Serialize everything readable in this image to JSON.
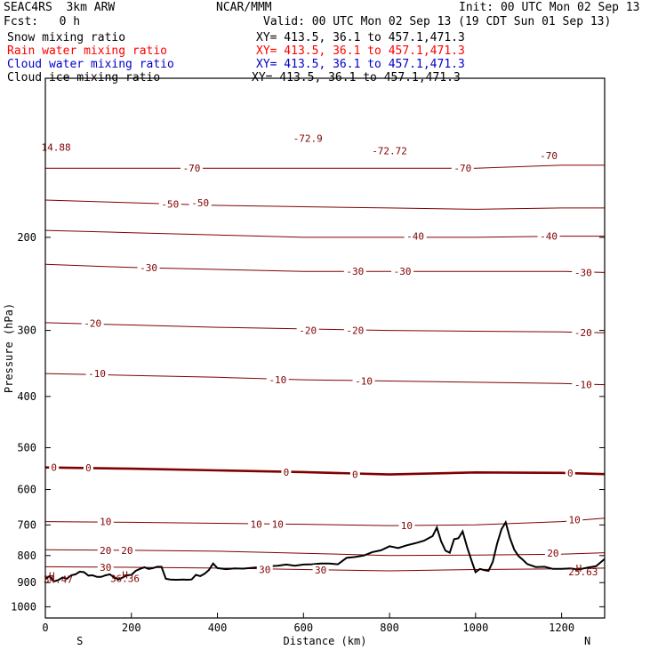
{
  "header": {
    "model": "SEAC4RS  3km ARW",
    "fcst": "Fcst:   0 h",
    "org": "NCAR/MMM",
    "init": "Init: 00 UTC Mon 02 Sep 13",
    "valid": "Valid: 00 UTC Mon 02 Sep 13 (19 CDT Sun 01 Sep 13)",
    "fields": [
      {
        "name": "Snow mixing ratio",
        "xy": "XY= 413.5, 36.1 to 457.1,471.3",
        "color": "#000000"
      },
      {
        "name": "Rain water mixing ratio",
        "xy": "XY= 413.5, 36.1 to 457.1,471.3",
        "color": "#ff0000"
      },
      {
        "name": "Cloud water mixing ratio",
        "xy": "XY= 413.5, 36.1 to 457.1,471.3",
        "color": "#0000cc"
      },
      {
        "name": "Cloud ice mixing ratio",
        "xy": "XY= 413.5, 36.1 to 457.1,471.3",
        "color": "#000000"
      }
    ]
  },
  "chart_data": {
    "type": "line",
    "xlabel": "Distance (km)",
    "ylabel": "Pressure (hPa)",
    "xlim": [
      0,
      1300
    ],
    "ylim": [
      1050,
      100
    ],
    "yscale": "log",
    "x_ticks": [
      0,
      200,
      400,
      600,
      800,
      1000,
      1200
    ],
    "y_ticks": [
      200,
      300,
      400,
      500,
      600,
      700,
      800,
      900,
      1000
    ],
    "y_tick_labels": [
      "200",
      "300",
      "400",
      "500",
      "600",
      "700",
      "800",
      "900",
      "1000"
    ],
    "x_endpoint_labels": {
      "left": "S",
      "right": "N"
    },
    "contour_color": "#800000",
    "terrain_color": "#000000",
    "isotherm_levels": [
      {
        "level": -70,
        "p": [
          148,
          148,
          148,
          148,
          148,
          148,
          146,
          146
        ]
      },
      {
        "level": -50,
        "p": [
          170,
          172,
          174,
          175,
          176,
          177,
          176,
          176
        ]
      },
      {
        "level": -40,
        "p": [
          194,
          196,
          198,
          200,
          200,
          200,
          199,
          199
        ]
      },
      {
        "level": -30,
        "p": [
          225,
          228,
          230,
          232,
          232,
          232,
          232,
          233
        ]
      },
      {
        "level": -20,
        "p": [
          290,
          293,
          296,
          298,
          300,
          301,
          302,
          303
        ]
      },
      {
        "level": -10,
        "p": [
          362,
          365,
          368,
          372,
          374,
          376,
          378,
          380
        ]
      },
      {
        "level": 0,
        "p": [
          545,
          548,
          552,
          556,
          562,
          557,
          558,
          561
        ]
      },
      {
        "level": 10,
        "p": [
          690,
          692,
          695,
          698,
          702,
          700,
          690,
          680
        ]
      },
      {
        "level": 20,
        "p": [
          780,
          782,
          785,
          792,
          800,
          798,
          795,
          790
        ]
      },
      {
        "level": 30,
        "p": [
          840,
          842,
          845,
          850,
          855,
          850,
          848,
          845
        ]
      }
    ],
    "isotherm_x": [
      0,
      200,
      400,
      600,
      800,
      1000,
      1200,
      1300
    ],
    "contour_labels": [
      {
        "text": "-70",
        "x": 340,
        "p": 148
      },
      {
        "text": "-72.9",
        "x": 610,
        "p": 130
      },
      {
        "text": "-72.72",
        "x": 800,
        "p": 137
      },
      {
        "text": "-70",
        "x": 970,
        "p": 148
      },
      {
        "text": "-70",
        "x": 1170,
        "p": 140
      },
      {
        "text": "-50",
        "x": 290,
        "p": 173
      },
      {
        "text": "-50",
        "x": 360,
        "p": 172
      },
      {
        "text": "-40",
        "x": 860,
        "p": 199
      },
      {
        "text": "-40",
        "x": 1170,
        "p": 199
      },
      {
        "text": "-30",
        "x": 240,
        "p": 228
      },
      {
        "text": "-30",
        "x": 720,
        "p": 232
      },
      {
        "text": "-30",
        "x": 830,
        "p": 232
      },
      {
        "text": "-30",
        "x": 1250,
        "p": 233
      },
      {
        "text": "-20",
        "x": 110,
        "p": 291
      },
      {
        "text": "-20",
        "x": 610,
        "p": 300
      },
      {
        "text": "-20",
        "x": 720,
        "p": 300
      },
      {
        "text": "-20",
        "x": 1250,
        "p": 303
      },
      {
        "text": "-10",
        "x": 120,
        "p": 362
      },
      {
        "text": "-10",
        "x": 540,
        "p": 372
      },
      {
        "text": "-10",
        "x": 740,
        "p": 374
      },
      {
        "text": "-10",
        "x": 1250,
        "p": 380
      },
      {
        "text": "0",
        "x": 20,
        "p": 545
      },
      {
        "text": "0",
        "x": 100,
        "p": 546
      },
      {
        "text": "0",
        "x": 560,
        "p": 556
      },
      {
        "text": "0",
        "x": 720,
        "p": 562
      },
      {
        "text": "0",
        "x": 1220,
        "p": 558
      },
      {
        "text": "10",
        "x": 140,
        "p": 690
      },
      {
        "text": "10",
        "x": 490,
        "p": 698
      },
      {
        "text": "10",
        "x": 540,
        "p": 698
      },
      {
        "text": "10",
        "x": 840,
        "p": 702
      },
      {
        "text": "10",
        "x": 1230,
        "p": 685
      },
      {
        "text": "20",
        "x": 140,
        "p": 782
      },
      {
        "text": "20",
        "x": 190,
        "p": 782
      },
      {
        "text": "20",
        "x": 1180,
        "p": 792
      },
      {
        "text": "30",
        "x": 140,
        "p": 842
      },
      {
        "text": "30",
        "x": 510,
        "p": 850
      },
      {
        "text": "30",
        "x": 640,
        "p": 852
      }
    ],
    "extrema_labels": [
      {
        "text": "H",
        "x": 15,
        "p": 874
      },
      {
        "text": "34.47",
        "x": 30,
        "p": 888
      },
      {
        "text": "H",
        "x": 185,
        "p": 870
      },
      {
        "text": "36.36",
        "x": 185,
        "p": 884
      },
      {
        "text": "H",
        "x": 1240,
        "p": 845
      },
      {
        "text": "25.63",
        "x": 1250,
        "p": 858
      },
      {
        "text": "14.88",
        "x": 25,
        "p": 135
      }
    ],
    "terrain": {
      "x": [
        0,
        10,
        20,
        30,
        40,
        50,
        60,
        70,
        80,
        90,
        100,
        110,
        120,
        130,
        140,
        150,
        160,
        170,
        180,
        190,
        200,
        210,
        220,
        230,
        240,
        250,
        260,
        270,
        280,
        290,
        300,
        310,
        320,
        330,
        340,
        350,
        360,
        370,
        380,
        390,
        400,
        420,
        440,
        460,
        480,
        500,
        520,
        540,
        560,
        580,
        600,
        620,
        640,
        660,
        680,
        700,
        720,
        740,
        760,
        780,
        800,
        820,
        840,
        860,
        880,
        900,
        910,
        920,
        930,
        940,
        950,
        960,
        970,
        980,
        990,
        1000,
        1010,
        1020,
        1030,
        1040,
        1050,
        1060,
        1070,
        1080,
        1090,
        1100,
        1110,
        1120,
        1140,
        1160,
        1180,
        1200,
        1220,
        1240,
        1260,
        1280,
        1300
      ],
      "p": [
        885,
        875,
        895,
        890,
        880,
        885,
        872,
        868,
        858,
        860,
        873,
        872,
        878,
        878,
        872,
        868,
        880,
        888,
        880,
        872,
        870,
        855,
        848,
        842,
        848,
        845,
        840,
        840,
        885,
        888,
        889,
        889,
        888,
        889,
        888,
        870,
        875,
        866,
        852,
        828,
        845,
        849,
        846,
        847,
        844,
        841,
        838,
        836,
        832,
        836,
        832,
        831,
        828,
        828,
        831,
        808,
        805,
        800,
        788,
        782,
        768,
        774,
        765,
        758,
        750,
        735,
        708,
        752,
        783,
        790,
        745,
        742,
        720,
        770,
        815,
        860,
        848,
        852,
        855,
        822,
        760,
        714,
        692,
        742,
        780,
        802,
        815,
        830,
        841,
        840,
        848,
        848,
        846,
        850,
        843,
        838,
        812
      ]
    }
  }
}
